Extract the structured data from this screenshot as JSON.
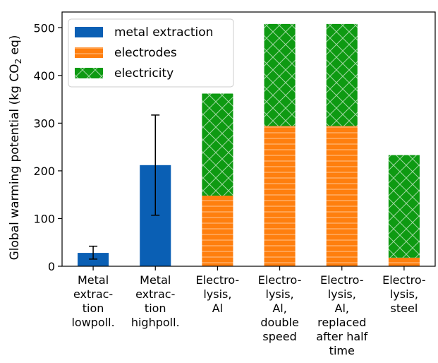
{
  "chart_data": {
    "type": "bar",
    "stacked": true,
    "categories": [
      [
        "Metal",
        "extrac-",
        "tion",
        "lowpoll."
      ],
      [
        "Metal",
        "extrac-",
        "tion",
        "highpoll."
      ],
      [
        "Electro-",
        "lysis,",
        "Al"
      ],
      [
        "Electro-",
        "lysis,",
        "Al,",
        "double",
        "speed"
      ],
      [
        "Electro-",
        "lysis,",
        "Al,",
        "replaced",
        "after half",
        "time"
      ],
      [
        "Electro-",
        "lysis,",
        "steel"
      ]
    ],
    "series": [
      {
        "name": "metal extraction",
        "color": "#0a5fb4",
        "pattern": "solid",
        "values": [
          28,
          212,
          0,
          0,
          0,
          0
        ],
        "error_low": [
          15,
          107,
          null,
          null,
          null,
          null
        ],
        "error_high": [
          42,
          317,
          null,
          null,
          null,
          null
        ]
      },
      {
        "name": "electrodes",
        "color": "#ff7f0e",
        "pattern": "horizontal-lines",
        "values": [
          0,
          0,
          148,
          294,
          294,
          18
        ]
      },
      {
        "name": "electricity",
        "color": "#0e9a12",
        "pattern": "crosshatch",
        "values": [
          0,
          0,
          214,
          214,
          214,
          215
        ]
      }
    ],
    "ylabel": {
      "prefix": "Global warming potential (kg CO",
      "subscript": "2",
      "suffix": " eq)"
    },
    "yticks": [
      0,
      100,
      200,
      300,
      400,
      500
    ],
    "ylim": [
      0,
      533
    ],
    "grid": false,
    "legend_position": "top-left"
  }
}
